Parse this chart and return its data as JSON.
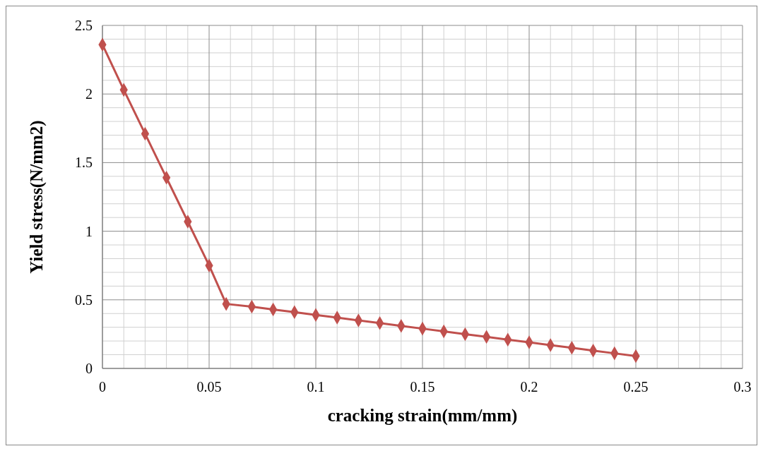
{
  "chart_data": {
    "type": "line",
    "xlabel": "cracking strain(mm/mm)",
    "ylabel": "Yield stress(N/mm2)",
    "xlim": [
      0,
      0.3
    ],
    "xticks": [
      0,
      0.05,
      0.1,
      0.15,
      0.2,
      0.25,
      0.3
    ],
    "ylim": [
      0,
      2.5
    ],
    "yticks": [
      0,
      0.5,
      1,
      1.5,
      2,
      2.5
    ],
    "grid": true,
    "marker": "diamond",
    "line_style": "solid",
    "series": [
      {
        "color": "#c0504d",
        "x": [
          0,
          0.01,
          0.02,
          0.03,
          0.04,
          0.05,
          0.058,
          0.07,
          0.08,
          0.09,
          0.1,
          0.11,
          0.12,
          0.13,
          0.14,
          0.15,
          0.16,
          0.17,
          0.18,
          0.19,
          0.2,
          0.21,
          0.22,
          0.23,
          0.24,
          0.25
        ],
        "values": [
          2.36,
          2.03,
          1.71,
          1.39,
          1.07,
          0.75,
          0.47,
          0.45,
          0.43,
          0.41,
          0.39,
          0.37,
          0.35,
          0.33,
          0.31,
          0.29,
          0.27,
          0.25,
          0.23,
          0.21,
          0.19,
          0.17,
          0.15,
          0.13,
          0.11,
          0.09
        ]
      }
    ]
  }
}
